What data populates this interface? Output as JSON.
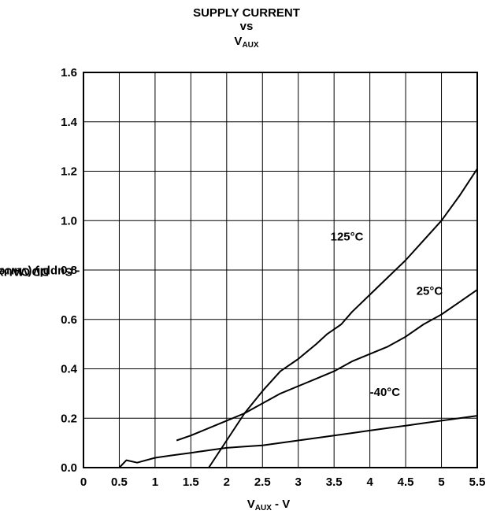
{
  "chart_data": {
    "type": "line",
    "title_line1": "SUPPLY CURRENT",
    "title_line2": "vs",
    "title_line3_main": "V",
    "title_line3_sub": "AUX",
    "xlabel_main": "V",
    "xlabel_sub": "AUX",
    "xlabel_suffix": " - V",
    "ylabel_main": "I",
    "ylabel_sub": "DD(VAUX)",
    "ylabel_suffix": " - Supply Current - nA",
    "xlim": [
      0,
      5.5
    ],
    "ylim": [
      0,
      1.6
    ],
    "xticks": [
      "0",
      "0.5",
      "1",
      "1.5",
      "2",
      "2.5",
      "3",
      "3.5",
      "4",
      "4.5",
      "5",
      "5.5"
    ],
    "yticks": [
      "0.0",
      "0.2",
      "0.4",
      "0.6",
      "0.8",
      "1.0",
      "1.2",
      "1.4",
      "1.6"
    ],
    "grid": true,
    "series": [
      {
        "name": "125°C",
        "label_pos": [
          3.45,
          0.92
        ],
        "points": [
          [
            1.75,
            0.0
          ],
          [
            2.0,
            0.11
          ],
          [
            2.25,
            0.22
          ],
          [
            2.5,
            0.31
          ],
          [
            2.75,
            0.39
          ],
          [
            3.0,
            0.44
          ],
          [
            3.25,
            0.5
          ],
          [
            3.4,
            0.54
          ],
          [
            3.5,
            0.56
          ],
          [
            3.6,
            0.58
          ],
          [
            3.75,
            0.63
          ],
          [
            4.0,
            0.7
          ],
          [
            4.25,
            0.77
          ],
          [
            4.5,
            0.84
          ],
          [
            4.75,
            0.92
          ],
          [
            5.0,
            1.0
          ],
          [
            5.25,
            1.1
          ],
          [
            5.5,
            1.21
          ]
        ]
      },
      {
        "name": "25°C",
        "label_pos": [
          4.65,
          0.7
        ],
        "points": [
          [
            1.3,
            0.11
          ],
          [
            1.5,
            0.13
          ],
          [
            1.75,
            0.16
          ],
          [
            2.0,
            0.19
          ],
          [
            2.25,
            0.22
          ],
          [
            2.5,
            0.26
          ],
          [
            2.75,
            0.3
          ],
          [
            3.0,
            0.33
          ],
          [
            3.25,
            0.36
          ],
          [
            3.5,
            0.39
          ],
          [
            3.75,
            0.43
          ],
          [
            4.0,
            0.46
          ],
          [
            4.25,
            0.49
          ],
          [
            4.5,
            0.53
          ],
          [
            4.75,
            0.58
          ],
          [
            5.0,
            0.62
          ],
          [
            5.25,
            0.67
          ],
          [
            5.5,
            0.72
          ]
        ]
      },
      {
        "name": "-40°C",
        "label_pos": [
          4.0,
          0.29
        ],
        "points": [
          [
            0.5,
            0.0
          ],
          [
            0.6,
            0.03
          ],
          [
            0.75,
            0.02
          ],
          [
            1.0,
            0.04
          ],
          [
            1.25,
            0.05
          ],
          [
            1.5,
            0.06
          ],
          [
            1.75,
            0.07
          ],
          [
            2.0,
            0.08
          ],
          [
            2.25,
            0.085
          ],
          [
            2.5,
            0.09
          ],
          [
            2.75,
            0.1
          ],
          [
            3.0,
            0.11
          ],
          [
            3.25,
            0.12
          ],
          [
            3.5,
            0.13
          ],
          [
            3.75,
            0.14
          ],
          [
            4.0,
            0.15
          ],
          [
            4.25,
            0.16
          ],
          [
            4.5,
            0.17
          ],
          [
            4.75,
            0.18
          ],
          [
            5.0,
            0.19
          ],
          [
            5.25,
            0.2
          ],
          [
            5.5,
            0.21
          ]
        ]
      }
    ]
  }
}
